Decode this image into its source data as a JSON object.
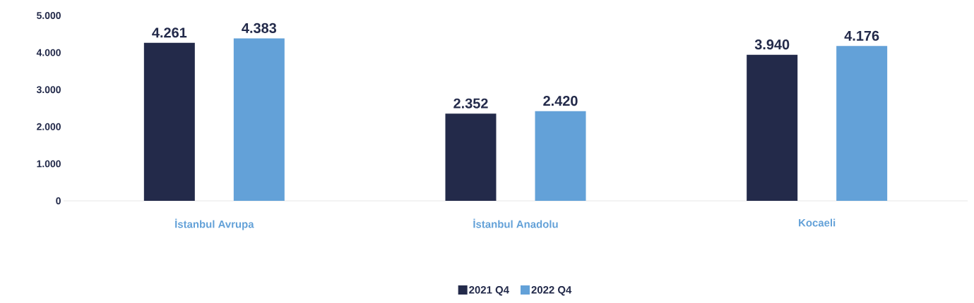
{
  "chart_data": {
    "type": "bar",
    "categories": [
      "İstanbul Avrupa",
      "İstanbul Anadolu",
      "Kocaeli"
    ],
    "series": [
      {
        "name": "2021 Q4",
        "color": "#232a4a",
        "values": [
          4261,
          2352,
          3940
        ],
        "value_labels": [
          "4.261",
          "2.352",
          "3.940"
        ]
      },
      {
        "name": "2022 Q4",
        "color": "#63a1d8",
        "values": [
          4383,
          2420,
          4176
        ],
        "value_labels": [
          "4.383",
          "2.420",
          "4.176"
        ]
      }
    ],
    "ylim": [
      0,
      5000
    ],
    "yticks": [
      {
        "value": 0,
        "label": "0"
      },
      {
        "value": 1000,
        "label": "1.000"
      },
      {
        "value": 2000,
        "label": "2.000"
      },
      {
        "value": 3000,
        "label": "3.000"
      },
      {
        "value": 4000,
        "label": "4.000"
      },
      {
        "value": 5000,
        "label": "5.000"
      }
    ],
    "legend": "bottom",
    "grid": false
  }
}
